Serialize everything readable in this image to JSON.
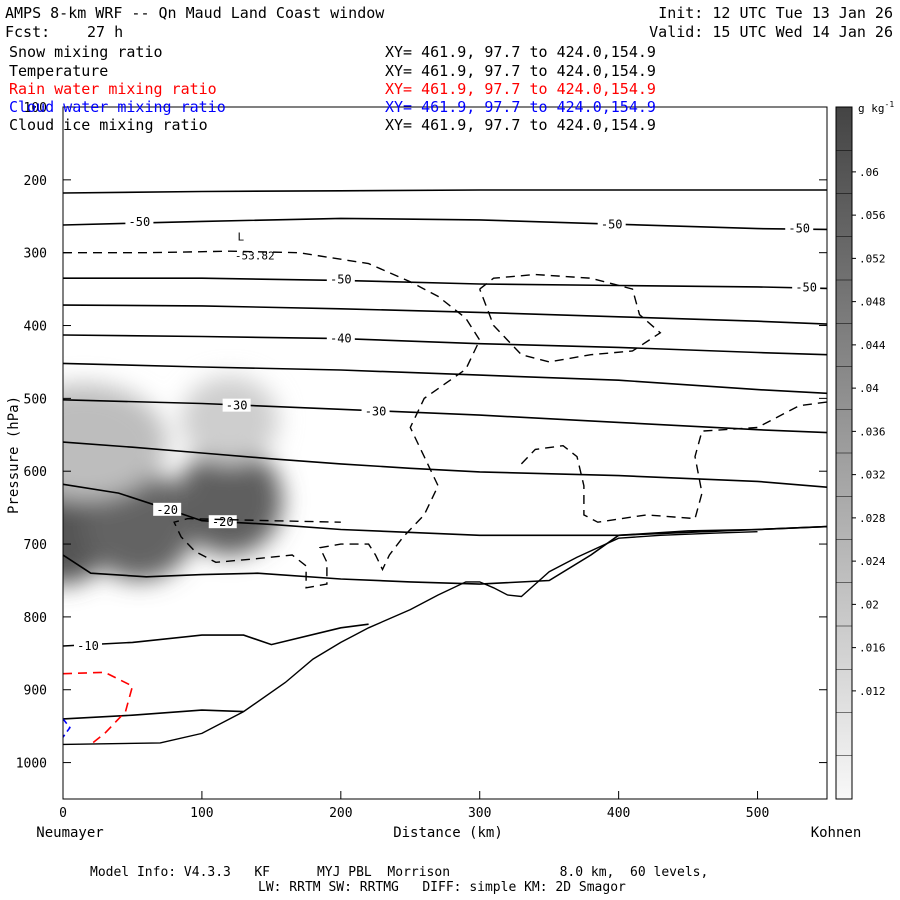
{
  "header": {
    "title": "AMPS 8-km WRF -- Qn Maud Land Coast window",
    "init": "Init: 12 UTC Tue 13 Jan 26",
    "fcst_label": "Fcst:",
    "fcst_value": "27 h",
    "valid": "Valid: 15 UTC Wed 14 Jan 26"
  },
  "fields": [
    {
      "name": "Snow mixing ratio",
      "xy": "XY= 461.9, 97.7 to 424.0,154.9",
      "color": "#000000"
    },
    {
      "name": "Temperature",
      "xy": "XY= 461.9, 97.7 to 424.0,154.9",
      "color": "#000000"
    },
    {
      "name": "Rain water mixing ratio",
      "xy": "XY= 461.9, 97.7 to 424.0,154.9",
      "color": "#ff0000"
    },
    {
      "name": "Cloud water mixing ratio",
      "xy": "XY= 461.9, 97.7 to 424.0,154.9",
      "color": "#0000ff"
    },
    {
      "name": "Cloud ice mixing ratio",
      "xy": "XY= 461.9, 97.7 to 424.0,154.9",
      "color": "#000000"
    }
  ],
  "footer": {
    "line1": "Model Info: V4.3.3   KF      MYJ PBL  Morrison              8.0 km,  60 levels,",
    "line2": "LW: RRTM SW: RRTMG   DIFF: simple KM: 2D Smagor"
  },
  "chart_data": {
    "type": "cross-section",
    "xlabel": "Distance (km)",
    "ylabel": "Pressure (hPa)",
    "x_left_label": "Neumayer",
    "x_right_label": "Kohnen",
    "xlim": [
      0,
      550
    ],
    "ylim": [
      1050,
      100
    ],
    "xticks": [
      0,
      100,
      200,
      300,
      400,
      500
    ],
    "yticks": [
      100,
      200,
      300,
      400,
      500,
      600,
      700,
      800,
      900,
      1000
    ],
    "grid": false,
    "colorbar": {
      "unit": "g kg",
      "unit_exp": "-1",
      "labels": [
        ".06",
        ".056",
        ".052",
        ".048",
        ".044",
        ".04",
        ".036",
        ".032",
        ".028",
        ".024",
        ".02",
        ".016",
        ".012"
      ],
      "low_color": "#f6f6f6",
      "high_color": "#4a4a4a"
    },
    "temperature_contours": [
      {
        "points": [
          [
            0,
            218
          ],
          [
            100,
            216
          ],
          [
            200,
            215
          ],
          [
            300,
            214
          ],
          [
            400,
            214
          ],
          [
            500,
            214
          ],
          [
            550,
            214
          ]
        ]
      },
      {
        "points": [
          [
            0,
            262
          ],
          [
            100,
            257
          ],
          [
            200,
            253
          ],
          [
            300,
            255
          ],
          [
            400,
            261
          ],
          [
            500,
            267
          ],
          [
            550,
            268
          ]
        ],
        "labels": [
          {
            "x": 55,
            "y": 258,
            "text": "-50"
          },
          {
            "x": 395,
            "y": 261,
            "text": "-50"
          },
          {
            "x": 530,
            "y": 267,
            "text": "-50"
          }
        ]
      },
      {
        "points": [
          [
            0,
            335
          ],
          [
            100,
            335
          ],
          [
            200,
            338
          ],
          [
            300,
            343
          ],
          [
            400,
            345
          ],
          [
            500,
            347
          ],
          [
            550,
            349
          ]
        ],
        "labels": [
          {
            "x": 200,
            "y": 337,
            "text": "-50"
          },
          {
            "x": 535,
            "y": 348,
            "text": "-50"
          }
        ]
      },
      {
        "points": [
          [
            0,
            372
          ],
          [
            100,
            373
          ],
          [
            200,
            377
          ],
          [
            300,
            382
          ],
          [
            400,
            388
          ],
          [
            500,
            394
          ],
          [
            550,
            398
          ]
        ]
      },
      {
        "points": [
          [
            0,
            413
          ],
          [
            100,
            415
          ],
          [
            200,
            418
          ],
          [
            300,
            425
          ],
          [
            400,
            430
          ],
          [
            500,
            437
          ],
          [
            550,
            440
          ]
        ],
        "labels": [
          {
            "x": 200,
            "y": 418,
            "text": "-40"
          }
        ]
      },
      {
        "points": [
          [
            0,
            452
          ],
          [
            100,
            457
          ],
          [
            200,
            461
          ],
          [
            300,
            468
          ],
          [
            400,
            475
          ],
          [
            500,
            488
          ],
          [
            550,
            493
          ]
        ]
      },
      {
        "points": [
          [
            0,
            502
          ],
          [
            100,
            507
          ],
          [
            200,
            515
          ],
          [
            300,
            523
          ],
          [
            400,
            533
          ],
          [
            500,
            543
          ],
          [
            550,
            547
          ]
        ],
        "labels": [
          {
            "x": 125,
            "y": 510,
            "text": "-30"
          },
          {
            "x": 225,
            "y": 518,
            "text": "-30"
          }
        ]
      },
      {
        "points": [
          [
            0,
            560
          ],
          [
            50,
            567
          ],
          [
            100,
            575
          ],
          [
            150,
            583
          ],
          [
            200,
            590
          ],
          [
            250,
            596
          ],
          [
            300,
            601
          ],
          [
            400,
            606
          ],
          [
            500,
            614
          ],
          [
            550,
            622
          ]
        ]
      },
      {
        "points": [
          [
            0,
            618
          ],
          [
            40,
            630
          ],
          [
            80,
            655
          ],
          [
            100,
            668
          ],
          [
            150,
            673
          ],
          [
            200,
            680
          ],
          [
            300,
            688
          ],
          [
            400,
            688
          ],
          [
            500,
            680
          ],
          [
            550,
            676
          ]
        ],
        "labels": [
          {
            "x": 75,
            "y": 653,
            "text": "-20"
          },
          {
            "x": 115,
            "y": 670,
            "text": "-20"
          }
        ]
      },
      {
        "points": [
          [
            0,
            715
          ],
          [
            20,
            740
          ],
          [
            60,
            745
          ],
          [
            100,
            742
          ],
          [
            140,
            740
          ],
          [
            200,
            748
          ],
          [
            250,
            752
          ],
          [
            300,
            755
          ],
          [
            350,
            750
          ],
          [
            380,
            715
          ],
          [
            400,
            688
          ],
          [
            450,
            682
          ],
          [
            500,
            680
          ],
          [
            550,
            676
          ]
        ]
      },
      {
        "points": [
          [
            0,
            840
          ],
          [
            50,
            835
          ],
          [
            100,
            825
          ],
          [
            130,
            825
          ],
          [
            150,
            838
          ],
          [
            200,
            815
          ],
          [
            220,
            810
          ]
        ],
        "labels": [
          {
            "x": 18,
            "y": 840,
            "text": "-10"
          }
        ]
      },
      {
        "points": [
          [
            0,
            940
          ],
          [
            50,
            935
          ],
          [
            100,
            928
          ],
          [
            130,
            930
          ]
        ]
      }
    ],
    "terrain": [
      [
        0,
        975
      ],
      [
        70,
        973
      ],
      [
        100,
        960
      ],
      [
        130,
        930
      ],
      [
        160,
        890
      ],
      [
        180,
        858
      ],
      [
        200,
        835
      ],
      [
        220,
        815
      ],
      [
        250,
        790
      ],
      [
        270,
        770
      ],
      [
        290,
        752
      ],
      [
        300,
        752
      ],
      [
        310,
        760
      ],
      [
        320,
        770
      ],
      [
        330,
        772
      ],
      [
        340,
        755
      ],
      [
        350,
        738
      ],
      [
        370,
        718
      ],
      [
        400,
        692
      ],
      [
        430,
        688
      ],
      [
        470,
        685
      ],
      [
        500,
        683
      ]
    ],
    "min_label": {
      "x": 128,
      "y": 300,
      "mark": "L",
      "value": "-53.82"
    },
    "shading_blobs": [
      {
        "x": 0,
        "p": 670,
        "rx_km": 40,
        "rp_hpa": 85,
        "q": 0.055
      },
      {
        "x": 55,
        "p": 675,
        "rx_km": 40,
        "rp_hpa": 75,
        "q": 0.05
      },
      {
        "x": 120,
        "p": 640,
        "rx_km": 38,
        "rp_hpa": 75,
        "q": 0.052
      },
      {
        "x": 15,
        "p": 560,
        "rx_km": 60,
        "rp_hpa": 80,
        "q": 0.02
      },
      {
        "x": 120,
        "p": 530,
        "rx_km": 35,
        "rp_hpa": 60,
        "q": 0.014
      }
    ],
    "snow_contour_dashed": [
      [
        0,
        300
      ],
      [
        60,
        300
      ],
      [
        120,
        298
      ],
      [
        170,
        300
      ],
      [
        220,
        315
      ],
      [
        250,
        340
      ],
      [
        270,
        360
      ],
      [
        290,
        390
      ],
      [
        300,
        420
      ],
      [
        290,
        460
      ],
      [
        260,
        500
      ],
      [
        250,
        540
      ],
      [
        260,
        580
      ],
      [
        270,
        620
      ],
      [
        260,
        660
      ],
      [
        245,
        690
      ],
      [
        235,
        715
      ],
      [
        230,
        735
      ],
      [
        225,
        715
      ],
      [
        220,
        700
      ],
      [
        200,
        700
      ],
      [
        185,
        705
      ],
      [
        190,
        725
      ],
      [
        190,
        755
      ],
      [
        175,
        760
      ],
      [
        175,
        730
      ],
      [
        165,
        715
      ],
      [
        140,
        720
      ],
      [
        110,
        725
      ],
      [
        95,
        710
      ],
      [
        85,
        690
      ],
      [
        80,
        670
      ],
      [
        90,
        665
      ],
      [
        150,
        668
      ],
      [
        200,
        670
      ]
    ],
    "snow_contour_dashed_2": [
      [
        300,
        350
      ],
      [
        310,
        335
      ],
      [
        340,
        330
      ],
      [
        380,
        335
      ],
      [
        410,
        350
      ],
      [
        415,
        385
      ],
      [
        430,
        410
      ],
      [
        410,
        435
      ],
      [
        380,
        440
      ],
      [
        350,
        450
      ],
      [
        330,
        440
      ],
      [
        320,
        420
      ],
      [
        310,
        400
      ],
      [
        305,
        375
      ],
      [
        300,
        350
      ]
    ],
    "snow_contour_dashed_3": [
      [
        330,
        590
      ],
      [
        340,
        570
      ],
      [
        360,
        565
      ],
      [
        370,
        580
      ],
      [
        375,
        620
      ],
      [
        375,
        660
      ],
      [
        385,
        670
      ],
      [
        420,
        660
      ],
      [
        455,
        665
      ],
      [
        460,
        630
      ],
      [
        455,
        580
      ],
      [
        460,
        545
      ],
      [
        500,
        540
      ],
      [
        530,
        510
      ],
      [
        550,
        505
      ]
    ],
    "rain_contour_dashed": [
      [
        0,
        878
      ],
      [
        30,
        876
      ],
      [
        50,
        895
      ],
      [
        45,
        930
      ],
      [
        30,
        960
      ],
      [
        20,
        975
      ]
    ],
    "cloud_water_contour": [
      [
        0,
        940
      ],
      [
        5,
        952
      ],
      [
        0,
        965
      ]
    ]
  }
}
